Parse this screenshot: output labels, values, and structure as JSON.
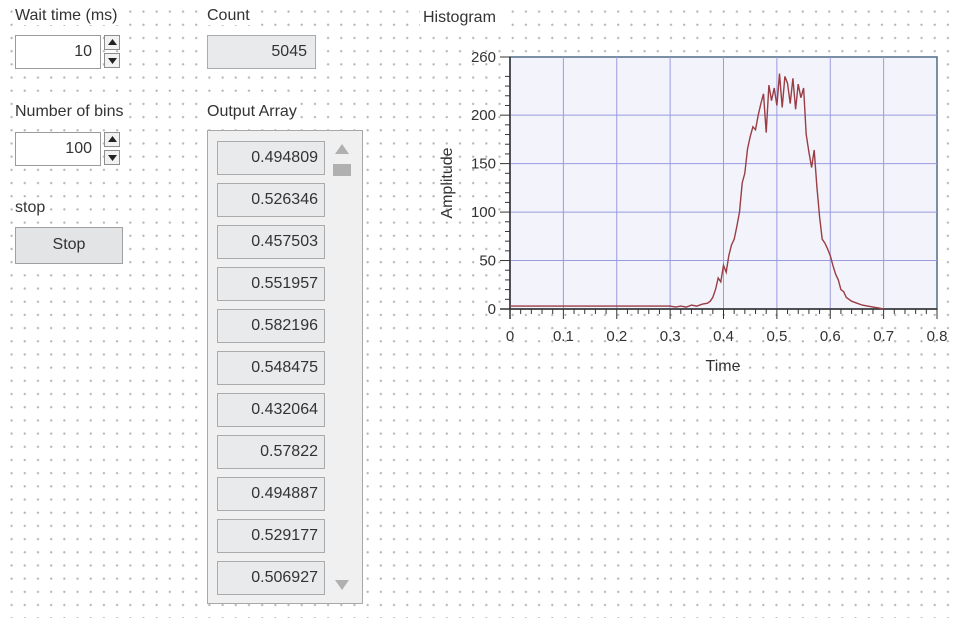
{
  "controls": {
    "wait_time": {
      "label": "Wait time (ms)",
      "value": "10"
    },
    "num_bins": {
      "label": "Number of bins",
      "value": "100"
    },
    "stop": {
      "label": "stop",
      "button_label": "Stop"
    }
  },
  "indicators": {
    "count": {
      "label": "Count",
      "value": "5045"
    },
    "output_array": {
      "label": "Output Array",
      "values": [
        "0.494809",
        "0.526346",
        "0.457503",
        "0.551957",
        "0.582196",
        "0.548475",
        "0.432064",
        "0.57822",
        "0.494887",
        "0.529177",
        "0.506927"
      ]
    }
  },
  "chart_data": {
    "type": "line",
    "title": "Histogram",
    "xlabel": "Time",
    "ylabel": "Amplitude",
    "xlim": [
      0,
      0.8
    ],
    "ylim": [
      0,
      260
    ],
    "grid": true,
    "x_ticks": [
      "0",
      "0.1",
      "0.2",
      "0.3",
      "0.4",
      "0.5",
      "0.6",
      "0.7",
      "0.8"
    ],
    "y_ticks": [
      "0",
      "50",
      "100",
      "150",
      "200",
      "260"
    ],
    "color": "#9a3d44",
    "x": [
      0,
      0.3,
      0.31,
      0.32,
      0.33,
      0.34,
      0.35,
      0.36,
      0.37,
      0.375,
      0.38,
      0.385,
      0.39,
      0.395,
      0.4,
      0.405,
      0.41,
      0.415,
      0.42,
      0.425,
      0.43,
      0.435,
      0.44,
      0.445,
      0.45,
      0.455,
      0.46,
      0.465,
      0.47,
      0.475,
      0.48,
      0.485,
      0.49,
      0.495,
      0.5,
      0.505,
      0.51,
      0.515,
      0.52,
      0.525,
      0.53,
      0.535,
      0.54,
      0.545,
      0.55,
      0.555,
      0.56,
      0.565,
      0.57,
      0.575,
      0.58,
      0.585,
      0.59,
      0.595,
      0.6,
      0.605,
      0.61,
      0.615,
      0.62,
      0.625,
      0.63,
      0.64,
      0.65,
      0.66,
      0.67,
      0.68,
      0.69,
      0.7
    ],
    "y": [
      3,
      3,
      2,
      3,
      2,
      4,
      3,
      5,
      6,
      8,
      12,
      20,
      32,
      28,
      45,
      38,
      55,
      66,
      72,
      85,
      100,
      130,
      140,
      165,
      178,
      188,
      185,
      200,
      212,
      222,
      182,
      231,
      215,
      228,
      210,
      243,
      208,
      240,
      233,
      212,
      238,
      206,
      232,
      218,
      228,
      180,
      162,
      146,
      164,
      126,
      95,
      72,
      68,
      62,
      55,
      45,
      36,
      30,
      20,
      18,
      12,
      8,
      6,
      4,
      3,
      2,
      1,
      0
    ]
  }
}
